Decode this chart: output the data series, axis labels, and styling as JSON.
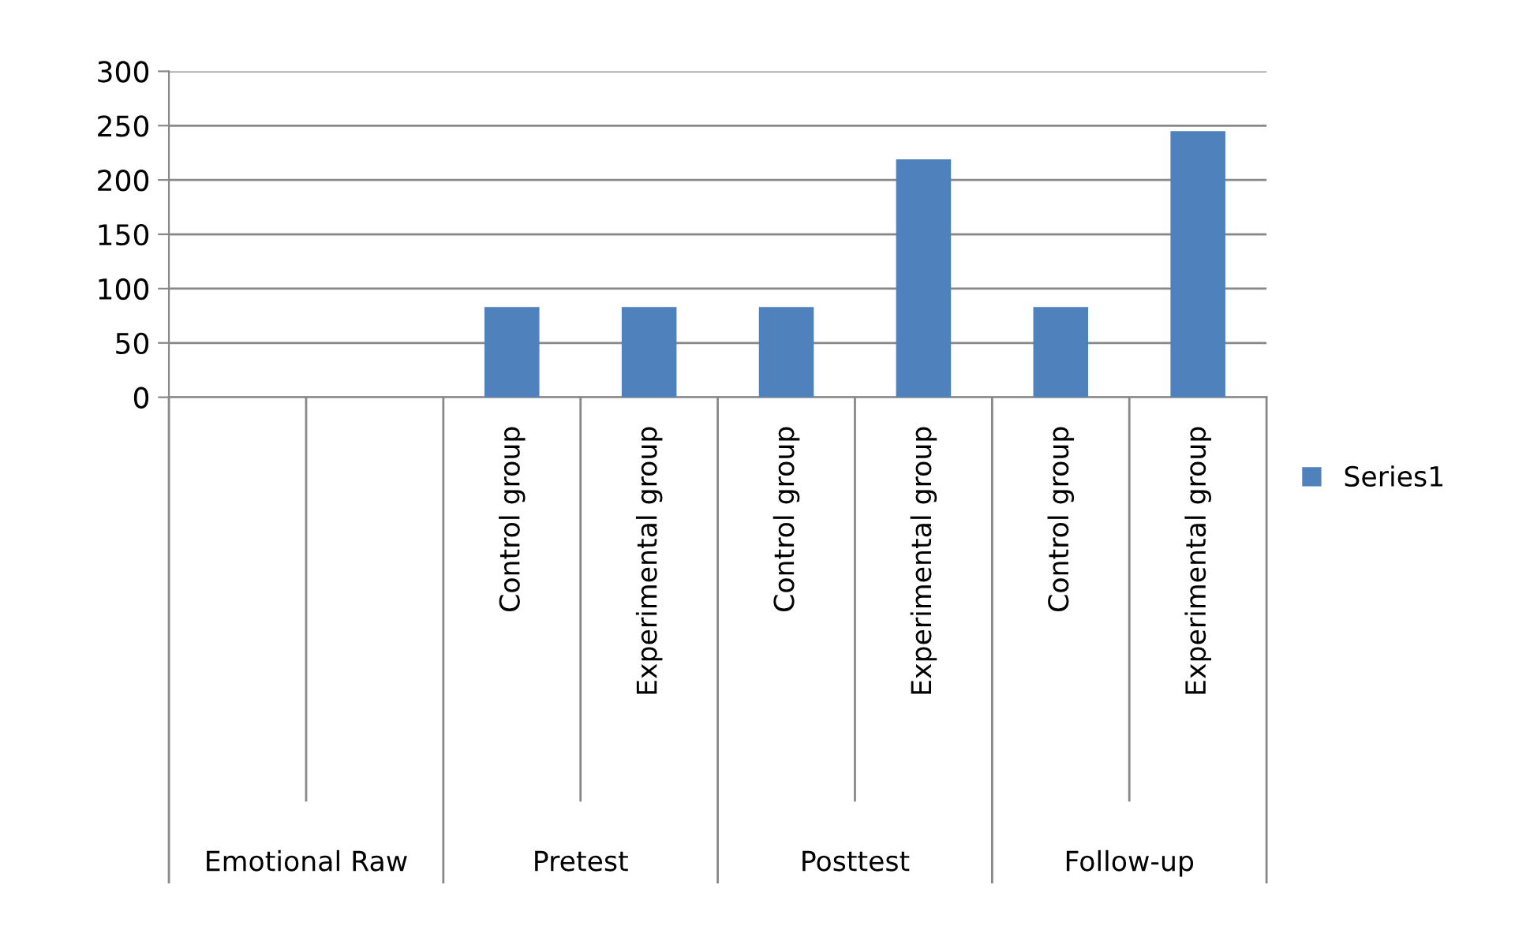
{
  "chart_data": {
    "type": "bar",
    "categories": [
      null,
      null,
      "Control group",
      "Experimental group",
      "Control group",
      "Experimental group",
      "Control group",
      "Experimental group"
    ],
    "series": [
      {
        "name": "Series1",
        "color": "#4f81bd",
        "values": [
          null,
          null,
          83,
          83,
          83,
          219,
          83,
          245
        ]
      }
    ],
    "annotations": [
      "Emotional Raw",
      "Pretest",
      "Posttest",
      "Follow-up"
    ],
    "ylim": [
      0,
      300
    ],
    "yticks": [
      0,
      50,
      100,
      150,
      200,
      250,
      300
    ],
    "grid": "y",
    "legend": "right"
  }
}
